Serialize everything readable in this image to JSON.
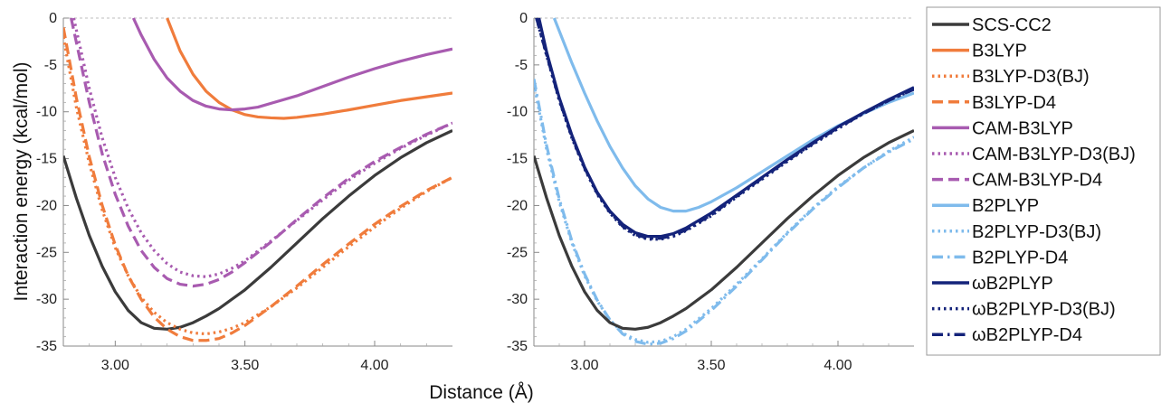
{
  "figure": {
    "ylabel": "Interaction energy (kcal/mol)",
    "xlabel": "Distance (Å)"
  },
  "styles": {
    "SCS-CC2": {
      "color": "#3b3b3b",
      "dash": "solid"
    },
    "B3LYP": {
      "color": "#f07c3c",
      "dash": "solid"
    },
    "B3LYP-D3(BJ)": {
      "color": "#f07c3c",
      "dash": "dotted"
    },
    "B3LYP-D4": {
      "color": "#f07c3c",
      "dash": "dashed"
    },
    "CAM-B3LYP": {
      "color": "#a85bb0",
      "dash": "solid"
    },
    "CAM-B3LYP-D3(BJ)": {
      "color": "#a85bb0",
      "dash": "dotted"
    },
    "CAM-B3LYP-D4": {
      "color": "#a85bb0",
      "dash": "dashed"
    },
    "B2PLYP": {
      "color": "#7fbbec",
      "dash": "solid"
    },
    "B2PLYP-D3(BJ)": {
      "color": "#7fbbec",
      "dash": "dotted"
    },
    "B2PLYP-D4": {
      "color": "#7fbbec",
      "dash": "dashdot"
    },
    "ωB2PLYP": {
      "color": "#14237a",
      "dash": "solid"
    },
    "ωB2PLYP-D3(BJ)": {
      "color": "#14237a",
      "dash": "dotted"
    },
    "ωB2PLYP-D4": {
      "color": "#14237a",
      "dash": "dashdot"
    }
  },
  "legend": {
    "position": "right",
    "entries": [
      "SCS-CC2",
      "B3LYP",
      "B3LYP-D3(BJ)",
      "B3LYP-D4",
      "CAM-B3LYP",
      "CAM-B3LYP-D3(BJ)",
      "CAM-B3LYP-D4",
      "B2PLYP",
      "B2PLYP-D3(BJ)",
      "B2PLYP-D4",
      "ωB2PLYP",
      "ωB2PLYP-D3(BJ)",
      "ωB2PLYP-D4"
    ]
  },
  "chart_data": [
    {
      "type": "line",
      "xlim": [
        2.8,
        4.3
      ],
      "ylim": [
        -35,
        0
      ],
      "xticks": [
        "3.00",
        "3.50",
        "4.00"
      ],
      "yticks": [
        "0",
        "-5",
        "-10",
        "-15",
        "-20",
        "-25",
        "-30",
        "-35"
      ],
      "grid": false,
      "zero_line": true,
      "series": [
        {
          "name": "SCS-CC2",
          "x": [
            2.8,
            2.85,
            2.9,
            2.95,
            3.0,
            3.05,
            3.1,
            3.15,
            3.2,
            3.25,
            3.3,
            3.35,
            3.4,
            3.5,
            3.6,
            3.7,
            3.8,
            3.9,
            4.0,
            4.1,
            4.2,
            4.3
          ],
          "y": [
            -14.7,
            -19.2,
            -23.2,
            -26.5,
            -29.2,
            -31.2,
            -32.5,
            -33.1,
            -33.2,
            -33.0,
            -32.5,
            -31.8,
            -31.0,
            -29.0,
            -26.6,
            -24.0,
            -21.4,
            -19.0,
            -16.8,
            -14.9,
            -13.3,
            -12.0
          ]
        },
        {
          "name": "B3LYP",
          "x": [
            3.2,
            3.25,
            3.3,
            3.35,
            3.4,
            3.45,
            3.5,
            3.55,
            3.6,
            3.65,
            3.7,
            3.8,
            3.9,
            4.0,
            4.1,
            4.2,
            4.3
          ],
          "y": [
            0.0,
            -3.5,
            -6.0,
            -7.8,
            -9.0,
            -9.8,
            -10.3,
            -10.55,
            -10.65,
            -10.7,
            -10.6,
            -10.25,
            -9.8,
            -9.3,
            -8.8,
            -8.4,
            -8.0
          ]
        },
        {
          "name": "B3LYP-D3(BJ)",
          "x": [
            2.8,
            2.85,
            2.9,
            2.95,
            3.0,
            3.05,
            3.1,
            3.15,
            3.2,
            3.25,
            3.3,
            3.35,
            3.4,
            3.45,
            3.5,
            3.6,
            3.7,
            3.8,
            3.9,
            4.0,
            4.1,
            4.2,
            4.3
          ],
          "y": [
            -2.0,
            -9.5,
            -15.5,
            -20.5,
            -24.5,
            -27.5,
            -29.8,
            -31.4,
            -32.5,
            -33.2,
            -33.6,
            -33.7,
            -33.5,
            -33.1,
            -32.5,
            -30.8,
            -28.8,
            -26.6,
            -24.4,
            -22.3,
            -20.3,
            -18.5,
            -17.0
          ]
        },
        {
          "name": "B3LYP-D4",
          "x": [
            2.8,
            2.85,
            2.9,
            2.95,
            3.0,
            3.05,
            3.1,
            3.15,
            3.2,
            3.25,
            3.3,
            3.35,
            3.4,
            3.45,
            3.5,
            3.6,
            3.7,
            3.8,
            3.9,
            4.0,
            4.1,
            4.2,
            4.3
          ],
          "y": [
            -1.0,
            -8.5,
            -14.8,
            -20.0,
            -24.2,
            -27.5,
            -30.0,
            -31.9,
            -33.2,
            -34.0,
            -34.4,
            -34.4,
            -34.2,
            -33.6,
            -32.8,
            -30.8,
            -28.6,
            -26.3,
            -24.1,
            -22.0,
            -20.1,
            -18.4,
            -17.0
          ]
        },
        {
          "name": "CAM-B3LYP",
          "x": [
            3.07,
            3.1,
            3.15,
            3.2,
            3.25,
            3.3,
            3.35,
            3.4,
            3.45,
            3.5,
            3.55,
            3.6,
            3.7,
            3.8,
            3.9,
            4.0,
            4.1,
            4.2,
            4.3
          ],
          "y": [
            0.0,
            -1.8,
            -4.4,
            -6.4,
            -7.8,
            -8.8,
            -9.4,
            -9.7,
            -9.8,
            -9.7,
            -9.5,
            -9.1,
            -8.3,
            -7.3,
            -6.3,
            -5.4,
            -4.6,
            -3.9,
            -3.3
          ]
        },
        {
          "name": "CAM-B3LYP-D3(BJ)",
          "x": [
            2.84,
            2.9,
            2.95,
            3.0,
            3.05,
            3.1,
            3.15,
            3.2,
            3.25,
            3.3,
            3.35,
            3.4,
            3.45,
            3.5,
            3.6,
            3.7,
            3.8,
            3.9,
            4.0,
            4.1,
            4.2,
            4.3
          ],
          "y": [
            0.0,
            -7.5,
            -12.8,
            -17.0,
            -20.3,
            -22.9,
            -24.8,
            -26.2,
            -27.1,
            -27.5,
            -27.6,
            -27.3,
            -26.7,
            -25.9,
            -23.8,
            -21.6,
            -19.4,
            -17.3,
            -15.5,
            -13.9,
            -12.5,
            -11.2
          ]
        },
        {
          "name": "CAM-B3LYP-D4",
          "x": [
            2.83,
            2.9,
            2.95,
            3.0,
            3.05,
            3.1,
            3.15,
            3.2,
            3.25,
            3.3,
            3.35,
            3.4,
            3.45,
            3.5,
            3.6,
            3.7,
            3.8,
            3.9,
            4.0,
            4.1,
            4.2,
            4.3
          ],
          "y": [
            0.0,
            -9.0,
            -14.5,
            -18.8,
            -22.2,
            -24.8,
            -26.6,
            -27.8,
            -28.4,
            -28.6,
            -28.4,
            -27.9,
            -27.1,
            -26.1,
            -23.9,
            -21.5,
            -19.2,
            -17.1,
            -15.3,
            -13.8,
            -12.4,
            -11.2
          ]
        },
        {
          "name": "B2PLYP-D3(BJ)",
          "x": [
            2.8,
            2.85,
            2.9,
            2.95,
            3.0,
            3.05,
            3.1,
            3.15,
            3.2,
            3.25,
            3.3,
            3.35,
            3.4,
            3.5,
            3.6,
            3.7,
            3.8,
            3.9,
            4.0,
            4.1,
            4.2,
            4.3
          ],
          "y": [
            -7.0,
            -14.0,
            -19.6,
            -24.0,
            -27.5,
            -30.2,
            -32.2,
            -33.6,
            -34.3,
            -34.6,
            -34.5,
            -34.0,
            -33.2,
            -31.0,
            -28.4,
            -25.7,
            -22.9,
            -20.3,
            -18.0,
            -16.0,
            -14.2,
            -12.7
          ]
        },
        {
          "name": "B2PLYP-D4",
          "x": [
            2.8,
            2.85,
            2.9,
            2.95,
            3.0,
            3.05,
            3.1,
            3.15,
            3.2,
            3.25,
            3.3,
            3.35,
            3.4,
            3.5,
            3.6,
            3.7,
            3.8,
            3.9,
            4.0,
            4.1,
            4.2,
            4.3
          ],
          "y": [
            -6.5,
            -13.6,
            -19.3,
            -23.8,
            -27.3,
            -30.1,
            -32.2,
            -33.7,
            -34.5,
            -34.8,
            -34.7,
            -34.2,
            -33.4,
            -31.2,
            -28.6,
            -25.8,
            -23.0,
            -20.4,
            -18.1,
            -16.0,
            -14.3,
            -12.9
          ]
        },
        {
          "name": "B2PLYP",
          "x": [
            2.88,
            2.95,
            3.0,
            3.05,
            3.1,
            3.15,
            3.2,
            3.25,
            3.3,
            3.35,
            3.4,
            3.45,
            3.5,
            3.6,
            3.7,
            3.8,
            3.9,
            4.0,
            4.1,
            4.2,
            4.3
          ],
          "y": [
            0.0,
            -4.8,
            -8.0,
            -11.0,
            -13.7,
            -16.0,
            -17.9,
            -19.3,
            -20.2,
            -20.6,
            -20.6,
            -20.2,
            -19.6,
            -18.1,
            -16.4,
            -14.7,
            -13.0,
            -11.5,
            -10.2,
            -9.0,
            -8.0
          ]
        },
        {
          "name": "ωB2PLYP",
          "x": [
            2.82,
            2.85,
            2.9,
            2.95,
            3.0,
            3.05,
            3.1,
            3.15,
            3.2,
            3.25,
            3.3,
            3.35,
            3.4,
            3.5,
            3.6,
            3.7,
            3.8,
            3.9,
            4.0,
            4.1,
            4.2,
            4.3
          ],
          "y": [
            0.0,
            -3.6,
            -8.5,
            -12.5,
            -15.9,
            -18.6,
            -20.6,
            -22.0,
            -22.9,
            -23.3,
            -23.3,
            -23.0,
            -22.4,
            -20.8,
            -18.9,
            -17.0,
            -15.1,
            -13.3,
            -11.6,
            -10.1,
            -8.7,
            -7.4
          ]
        },
        {
          "name": "ωB2PLYP-D3(BJ)",
          "x": [
            2.81,
            2.85,
            2.9,
            2.95,
            3.0,
            3.05,
            3.1,
            3.15,
            3.2,
            3.25,
            3.3,
            3.35,
            3.4,
            3.5,
            3.6,
            3.7,
            3.8,
            3.9,
            4.0,
            4.1,
            4.2,
            4.3
          ],
          "y": [
            0.0,
            -4.0,
            -8.8,
            -12.8,
            -16.1,
            -18.8,
            -20.8,
            -22.3,
            -23.2,
            -23.6,
            -23.6,
            -23.3,
            -22.7,
            -21.1,
            -19.1,
            -17.2,
            -15.3,
            -13.5,
            -11.8,
            -10.2,
            -8.8,
            -7.6
          ]
        },
        {
          "name": "ωB2PLYP-D4",
          "x": [
            2.81,
            2.85,
            2.9,
            2.95,
            3.0,
            3.05,
            3.1,
            3.15,
            3.2,
            3.25,
            3.3,
            3.35,
            3.4,
            3.5,
            3.6,
            3.7,
            3.8,
            3.9,
            4.0,
            4.1,
            4.2,
            4.3
          ],
          "y": [
            0.0,
            -3.9,
            -8.7,
            -12.7,
            -16.0,
            -18.7,
            -20.7,
            -22.2,
            -23.1,
            -23.5,
            -23.5,
            -23.2,
            -22.6,
            -21.0,
            -19.0,
            -17.1,
            -15.2,
            -13.4,
            -11.7,
            -10.2,
            -8.8,
            -7.6
          ]
        },
        {
          "name": "SCS-CC2",
          "x": [
            2.8,
            2.85,
            2.9,
            2.95,
            3.0,
            3.05,
            3.1,
            3.15,
            3.2,
            3.25,
            3.3,
            3.35,
            3.4,
            3.5,
            3.6,
            3.7,
            3.8,
            3.9,
            4.0,
            4.1,
            4.2,
            4.3
          ],
          "y": [
            -14.7,
            -19.2,
            -23.2,
            -26.5,
            -29.2,
            -31.2,
            -32.5,
            -33.1,
            -33.2,
            -33.0,
            -32.5,
            -31.8,
            -31.0,
            -29.0,
            -26.6,
            -24.0,
            -21.4,
            -19.0,
            -16.8,
            -14.9,
            -13.3,
            -12.0
          ]
        }
      ]
    }
  ]
}
